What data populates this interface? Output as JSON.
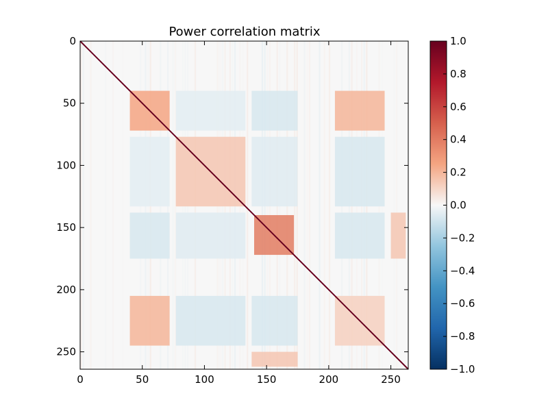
{
  "chart_data": {
    "type": "heatmap",
    "title": "Power correlation matrix",
    "matrix_size": 264,
    "xlim": [
      0,
      264
    ],
    "ylim": [
      264,
      0
    ],
    "x_ticks": [
      0,
      50,
      100,
      150,
      200,
      250
    ],
    "y_ticks": [
      0,
      50,
      100,
      150,
      200,
      250
    ],
    "x_tick_labels": [
      "0",
      "50",
      "100",
      "150",
      "200",
      "250"
    ],
    "y_tick_labels": [
      "0",
      "50",
      "100",
      "150",
      "200",
      "250"
    ],
    "diagonal_value": 1.0,
    "background_value": 0.0,
    "blocks": [
      {
        "range": [
          [
            40,
            72
          ],
          [
            40,
            72
          ]
        ],
        "value": 0.25
      },
      {
        "range": [
          [
            77,
            133
          ],
          [
            77,
            133
          ]
        ],
        "value": 0.15
      },
      {
        "range": [
          [
            140,
            172
          ],
          [
            140,
            172
          ]
        ],
        "value": 0.4
      },
      {
        "range": [
          [
            40,
            72
          ],
          [
            205,
            245
          ]
        ],
        "value": 0.2
      },
      {
        "range": [
          [
            40,
            72
          ],
          [
            138,
            175
          ]
        ],
        "value": -0.08
      },
      {
        "range": [
          [
            40,
            72
          ],
          [
            77,
            133
          ]
        ],
        "value": -0.05
      },
      {
        "range": [
          [
            77,
            133
          ],
          [
            138,
            175
          ]
        ],
        "value": -0.06
      },
      {
        "range": [
          [
            77,
            133
          ],
          [
            205,
            245
          ]
        ],
        "value": -0.08
      },
      {
        "range": [
          [
            138,
            175
          ],
          [
            205,
            245
          ]
        ],
        "value": -0.08
      },
      {
        "range": [
          [
            205,
            245
          ],
          [
            205,
            245
          ]
        ],
        "value": 0.12
      },
      {
        "range": [
          [
            250,
            262
          ],
          [
            138,
            175
          ]
        ],
        "value": 0.15
      }
    ],
    "colorbar": {
      "colormap": "RdBu_r",
      "min": -1.0,
      "max": 1.0,
      "ticks": [
        1.0,
        0.8,
        0.6,
        0.4,
        0.2,
        0.0,
        -0.2,
        -0.4,
        -0.6,
        -0.8,
        -1.0
      ],
      "tick_labels": [
        "1.0",
        "0.8",
        "0.6",
        "0.4",
        "0.2",
        "0.0",
        "−0.2",
        "−0.4",
        "−0.6",
        "−0.8",
        "−1.0"
      ],
      "stops": [
        {
          "value": 1.0,
          "color": "#67001f"
        },
        {
          "value": 0.75,
          "color": "#b2182b"
        },
        {
          "value": 0.5,
          "color": "#d6604d"
        },
        {
          "value": 0.25,
          "color": "#f4a582"
        },
        {
          "value": 0.0,
          "color": "#f7f7f7"
        },
        {
          "value": -0.25,
          "color": "#92c5de"
        },
        {
          "value": -0.5,
          "color": "#4393c3"
        },
        {
          "value": -0.75,
          "color": "#2166ac"
        },
        {
          "value": -1.0,
          "color": "#053061"
        }
      ]
    }
  }
}
